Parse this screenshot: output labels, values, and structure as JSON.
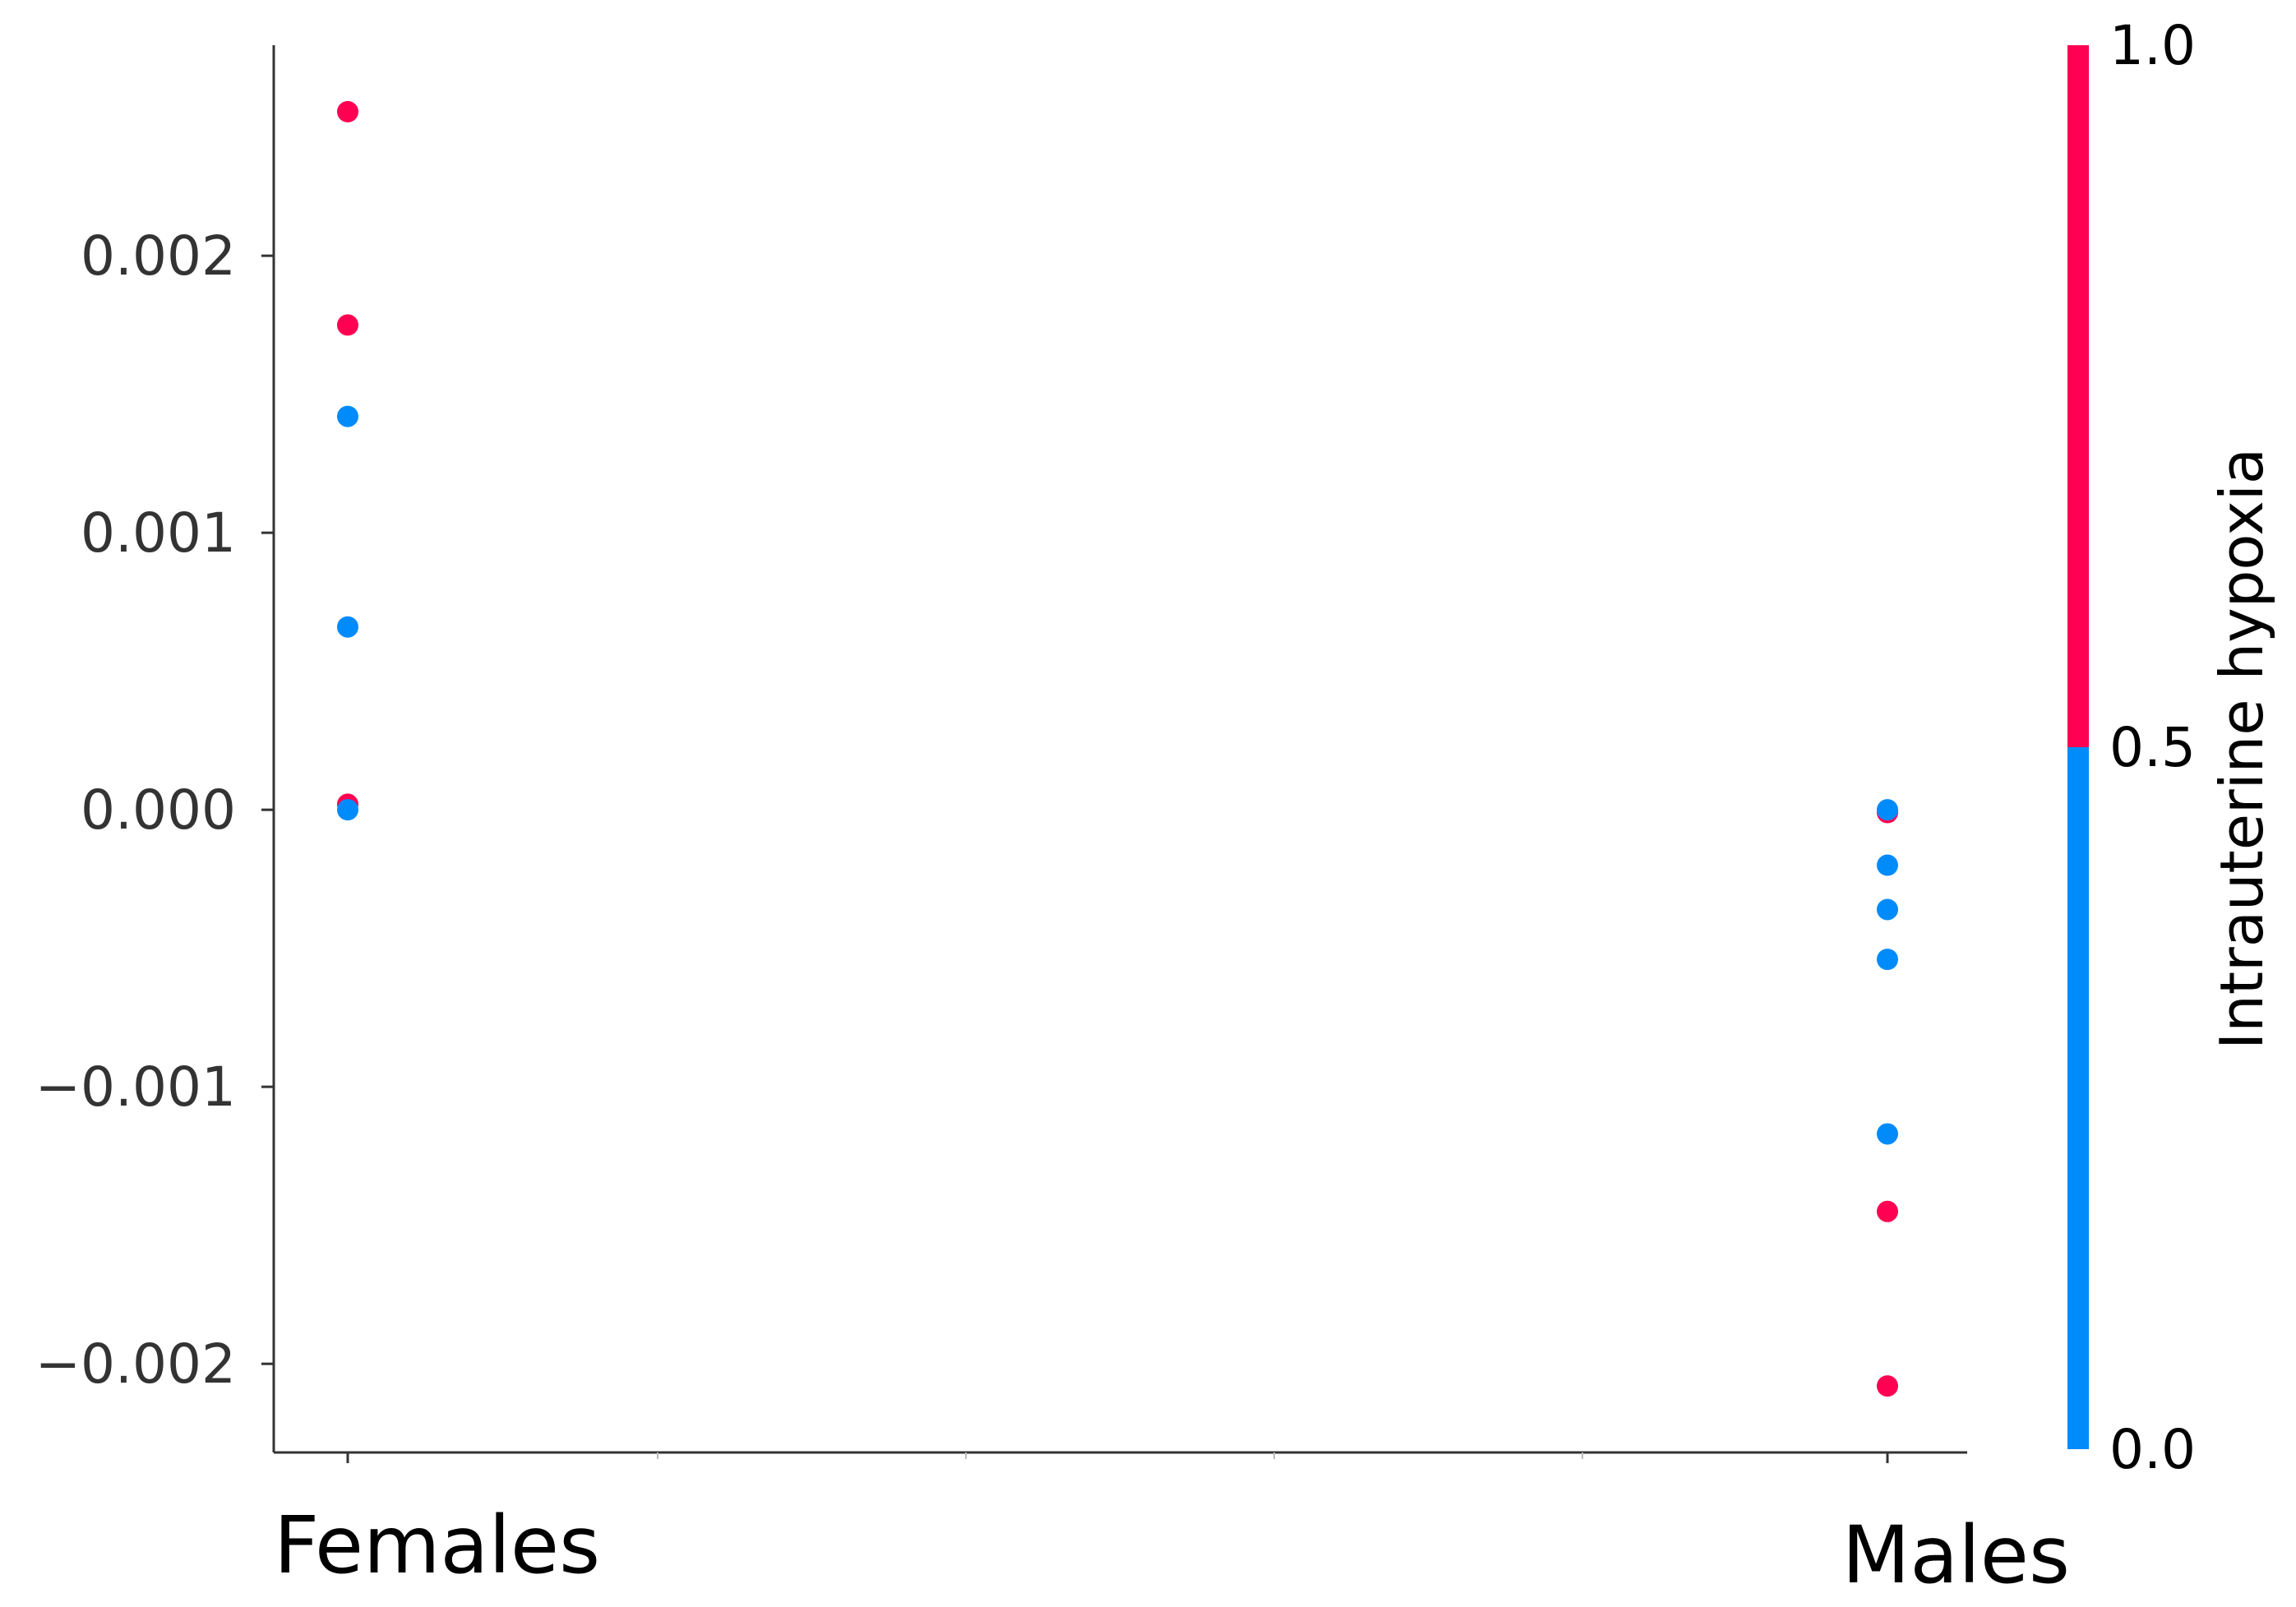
{
  "chart_data": {
    "type": "scatter",
    "title": "",
    "xlabel": "",
    "ylabel": "",
    "categories": [
      "Females",
      "Males"
    ],
    "ylim": [
      -0.00232,
      0.00276
    ],
    "yticks": [
      {
        "value": 0.002,
        "label": "0.002"
      },
      {
        "value": 0.001,
        "label": "0.001"
      },
      {
        "value": 0.0,
        "label": "0.000"
      },
      {
        "value": -0.001,
        "label": "−0.001"
      },
      {
        "value": -0.002,
        "label": "−0.002"
      }
    ],
    "points": [
      {
        "category": "Females",
        "y": 0.00252,
        "hypoxia": 1
      },
      {
        "category": "Females",
        "y": 0.00175,
        "hypoxia": 1
      },
      {
        "category": "Females",
        "y": 0.00142,
        "hypoxia": 0
      },
      {
        "category": "Females",
        "y": 0.00066,
        "hypoxia": 0
      },
      {
        "category": "Females",
        "y": 2e-05,
        "hypoxia": 1
      },
      {
        "category": "Females",
        "y": 0.0,
        "hypoxia": 0
      },
      {
        "category": "Males",
        "y": -1e-05,
        "hypoxia": 1
      },
      {
        "category": "Males",
        "y": 0.0,
        "hypoxia": 0
      },
      {
        "category": "Males",
        "y": -0.0002,
        "hypoxia": 0
      },
      {
        "category": "Males",
        "y": -0.00036,
        "hypoxia": 0
      },
      {
        "category": "Males",
        "y": -0.00054,
        "hypoxia": 0
      },
      {
        "category": "Males",
        "y": -0.00117,
        "hypoxia": 0
      },
      {
        "category": "Males",
        "y": -0.00145,
        "hypoxia": 1
      },
      {
        "category": "Males",
        "y": -0.00208,
        "hypoxia": 1
      }
    ],
    "colorbar": {
      "label": "Intrauterine hypoxia",
      "range": [
        0.0,
        1.0
      ],
      "ticks": [
        {
          "value": 1.0,
          "label": "1.0"
        },
        {
          "value": 0.5,
          "label": "0.5"
        },
        {
          "value": 0.0,
          "label": "0.0"
        }
      ],
      "low_color": "#008bfb",
      "high_color": "#ff0052"
    },
    "grid": false,
    "legend": "colorbar-right"
  }
}
